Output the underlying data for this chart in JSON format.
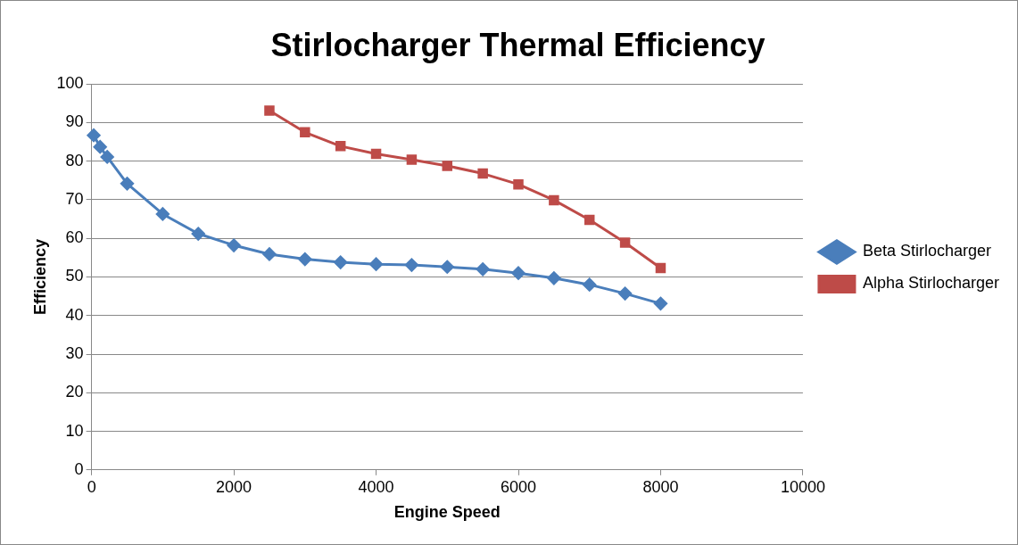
{
  "chart_data": {
    "type": "line",
    "title": "Stirlocharger Thermal Efficiency",
    "xlabel": "Engine Speed",
    "ylabel": "Efficiency",
    "xlim": [
      0,
      10000
    ],
    "xticks": [
      0,
      2000,
      4000,
      6000,
      8000,
      10000
    ],
    "ylim": [
      0,
      100
    ],
    "yticks": [
      0,
      10,
      20,
      30,
      40,
      50,
      60,
      70,
      80,
      90,
      100
    ],
    "grid": "y",
    "legend": "right",
    "series": [
      {
        "name": "Beta Stirlocharger",
        "color": "#4a7ebb",
        "marker": "diamond",
        "x": [
          30,
          120,
          220,
          500,
          1000,
          1500,
          2000,
          2500,
          3000,
          3500,
          4000,
          4500,
          5000,
          5500,
          6000,
          6500,
          7000,
          7500,
          8000
        ],
        "values": [
          86.7,
          83.7,
          81.1,
          74.2,
          66.3,
          61.2,
          58.2,
          55.9,
          54.6,
          53.8,
          53.3,
          53.1,
          52.6,
          52.0,
          51.0,
          49.7,
          48.0,
          45.7,
          43.1
        ]
      },
      {
        "name": "Alpha Stirlocharger",
        "color": "#be4b48",
        "marker": "square",
        "x": [
          2500,
          3000,
          3500,
          4000,
          4500,
          5000,
          5500,
          6000,
          6500,
          7000,
          7500,
          8000
        ],
        "values": [
          93.1,
          87.5,
          83.9,
          81.9,
          80.4,
          78.8,
          76.8,
          74.0,
          69.9,
          64.8,
          58.9,
          52.3
        ]
      }
    ]
  }
}
